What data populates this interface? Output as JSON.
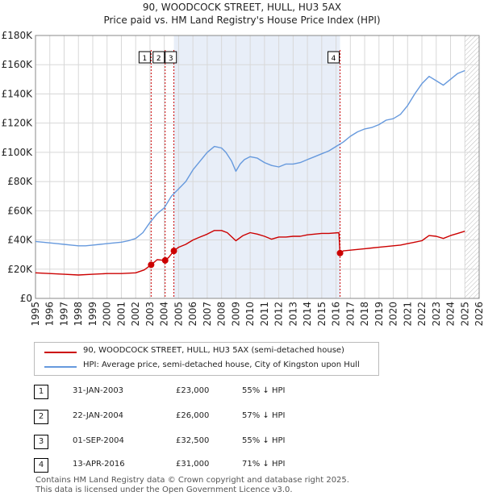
{
  "title_line1": "90, WOODCOCK STREET, HULL, HU3 5AX",
  "title_line2": "Price paid vs. HM Land Registry's House Price Index (HPI)",
  "colors": {
    "red": "#cc0000",
    "blue": "#6699dd",
    "marker_line": "#cc0000",
    "shade": "#e8eef8",
    "grid": "#d8d8d8"
  },
  "chart_data": {
    "type": "line",
    "title": "90, WOODCOCK STREET, HULL, HU3 5AX",
    "subtitle": "Price paid vs. HM Land Registry's House Price Index (HPI)",
    "xlabel": "",
    "ylabel": "",
    "xlim": [
      1995,
      2026
    ],
    "ylim": [
      0,
      180000
    ],
    "x_ticks": [
      1995,
      1996,
      1997,
      1998,
      1999,
      2000,
      2001,
      2002,
      2003,
      2004,
      2005,
      2006,
      2007,
      2008,
      2009,
      2010,
      2011,
      2012,
      2013,
      2014,
      2015,
      2016,
      2017,
      2018,
      2019,
      2020,
      2021,
      2022,
      2023,
      2024,
      2025,
      2026
    ],
    "y_ticks": [
      {
        "value": 0,
        "label": "£0"
      },
      {
        "value": 20000,
        "label": "£20K"
      },
      {
        "value": 40000,
        "label": "£40K"
      },
      {
        "value": 60000,
        "label": "£60K"
      },
      {
        "value": 80000,
        "label": "£80K"
      },
      {
        "value": 100000,
        "label": "£100K"
      },
      {
        "value": 120000,
        "label": "£120K"
      },
      {
        "value": 140000,
        "label": "£140K"
      },
      {
        "value": 160000,
        "label": "£160K"
      },
      {
        "value": 180000,
        "label": "£180K"
      }
    ],
    "grid": true,
    "shaded_range": [
      2004.67,
      2016.28
    ],
    "hatched_from": 2025.0,
    "series": [
      {
        "name": "90, WOODCOCK STREET, HULL, HU3 5AX (semi-detached house)",
        "color": "#cc0000",
        "x": [
          1995,
          1996,
          1997,
          1998,
          1999,
          2000,
          2001,
          2002,
          2002.6,
          2003.08,
          2003.5,
          2004.06,
          2004.3,
          2004.67,
          2005,
          2005.5,
          2006,
          2006.5,
          2007,
          2007.5,
          2008,
          2008.4,
          2009,
          2009.5,
          2010,
          2010.5,
          2011,
          2011.5,
          2012,
          2012.5,
          2013,
          2013.5,
          2014,
          2014.5,
          2015,
          2015.5,
          2016.2,
          2016.28,
          2016.5,
          2017,
          2017.5,
          2018,
          2018.5,
          2019,
          2019.5,
          2020,
          2020.5,
          2021,
          2021.5,
          2022,
          2022.5,
          2023,
          2023.5,
          2024,
          2024.5,
          2025
        ],
        "values": [
          17500,
          17000,
          16500,
          16000,
          16500,
          17000,
          17000,
          17500,
          19500,
          23000,
          26500,
          26000,
          28000,
          32500,
          35000,
          37000,
          40000,
          42000,
          44000,
          46500,
          46500,
          45000,
          39500,
          43000,
          45000,
          44000,
          42500,
          40500,
          42000,
          42000,
          42500,
          42500,
          43500,
          44000,
          44500,
          44500,
          45000,
          31000,
          32500,
          33000,
          33500,
          34000,
          34500,
          35000,
          35500,
          36000,
          36500,
          37500,
          38500,
          39500,
          43000,
          42500,
          41000,
          43000,
          44500,
          46000
        ]
      },
      {
        "name": "HPI: Average price, semi-detached house, City of Kingston upon Hull",
        "color": "#6699dd",
        "x": [
          1995,
          1995.5,
          1996,
          1996.5,
          1997,
          1997.5,
          1998,
          1998.5,
          1999,
          1999.5,
          2000,
          2000.5,
          2001,
          2001.5,
          2002,
          2002.5,
          2003,
          2003.5,
          2004,
          2004.5,
          2005,
          2005.5,
          2006,
          2006.5,
          2007,
          2007.5,
          2008,
          2008.3,
          2008.7,
          2009,
          2009.3,
          2009.6,
          2010,
          2010.5,
          2011,
          2011.5,
          2012,
          2012.5,
          2013,
          2013.5,
          2014,
          2014.5,
          2015,
          2015.5,
          2016,
          2016.5,
          2017,
          2017.5,
          2018,
          2018.5,
          2019,
          2019.5,
          2020,
          2020.5,
          2021,
          2021.5,
          2022,
          2022.5,
          2023,
          2023.5,
          2024,
          2024.5,
          2025
        ],
        "values": [
          39000,
          38500,
          38000,
          37500,
          37000,
          36500,
          36000,
          36000,
          36500,
          37000,
          37500,
          38000,
          38500,
          39500,
          41000,
          45000,
          52000,
          58000,
          62000,
          70000,
          75000,
          80000,
          88000,
          94000,
          100000,
          104000,
          103000,
          100000,
          94000,
          87000,
          92000,
          95000,
          97000,
          96000,
          93000,
          91000,
          90000,
          92000,
          92000,
          93000,
          95000,
          97000,
          99000,
          101000,
          104000,
          107000,
          111000,
          114000,
          116000,
          117000,
          119000,
          122000,
          123000,
          126000,
          132000,
          140000,
          147000,
          152000,
          149000,
          146000,
          150000,
          154000,
          156000
        ]
      }
    ],
    "transactions": [
      {
        "num": "1",
        "x": 2003.08,
        "value": 23000
      },
      {
        "num": "2",
        "x": 2004.06,
        "value": 26000
      },
      {
        "num": "3",
        "x": 2004.67,
        "value": 32500
      },
      {
        "num": "4",
        "x": 2016.28,
        "value": 31000
      }
    ]
  },
  "legend": {
    "red_label": "90, WOODCOCK STREET, HULL, HU3 5AX (semi-detached house)",
    "blue_label": "HPI: Average price, semi-detached house, City of Kingston upon Hull"
  },
  "table": [
    {
      "num": "1",
      "date": "31-JAN-2003",
      "price": "£23,000",
      "pct": "55% ↓ HPI"
    },
    {
      "num": "2",
      "date": "22-JAN-2004",
      "price": "£26,000",
      "pct": "57% ↓ HPI"
    },
    {
      "num": "3",
      "date": "01-SEP-2004",
      "price": "£32,500",
      "pct": "55% ↓ HPI"
    },
    {
      "num": "4",
      "date": "13-APR-2016",
      "price": "£31,000",
      "pct": "71% ↓ HPI"
    }
  ],
  "footer": {
    "line1": "Contains HM Land Registry data © Crown copyright and database right 2025.",
    "line2": "This data is licensed under the Open Government Licence v3.0."
  }
}
